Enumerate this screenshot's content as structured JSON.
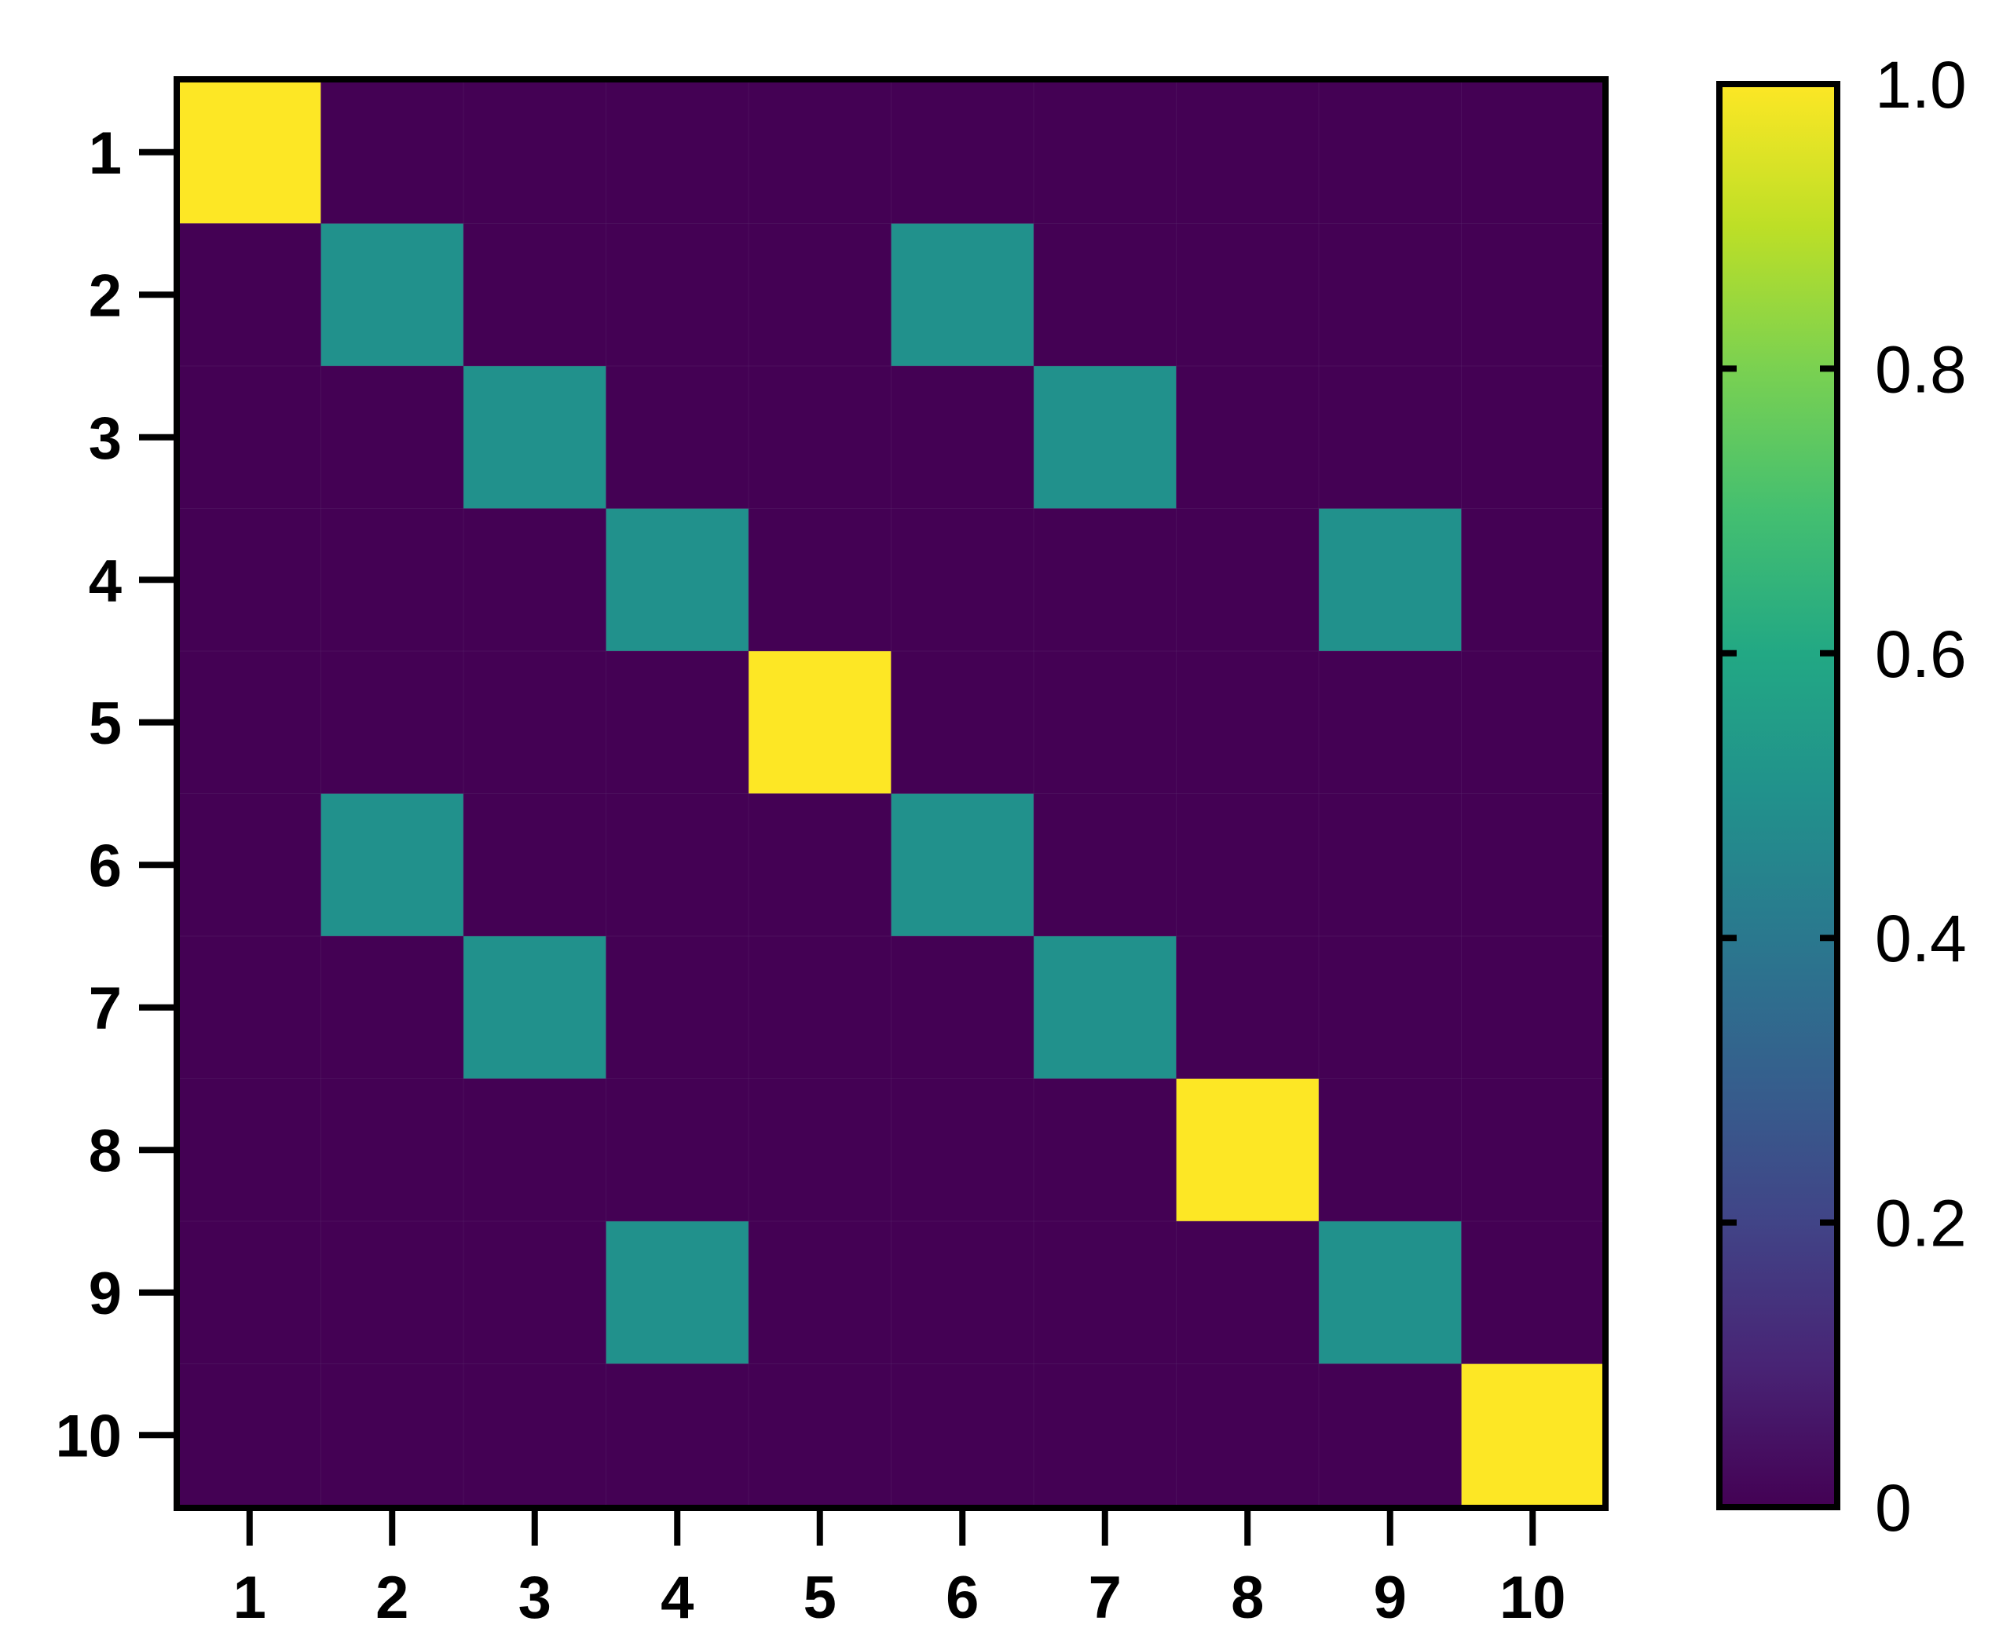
{
  "chart_data": {
    "type": "heatmap",
    "x_labels": [
      "1",
      "2",
      "3",
      "4",
      "5",
      "6",
      "7",
      "8",
      "9",
      "10"
    ],
    "y_labels": [
      "1",
      "2",
      "3",
      "4",
      "5",
      "6",
      "7",
      "8",
      "9",
      "10"
    ],
    "values": [
      [
        1.0,
        0,
        0,
        0,
        0,
        0,
        0,
        0,
        0,
        0
      ],
      [
        0,
        0.5,
        0,
        0,
        0,
        0.5,
        0,
        0,
        0,
        0
      ],
      [
        0,
        0,
        0.5,
        0,
        0,
        0,
        0.5,
        0,
        0,
        0
      ],
      [
        0,
        0,
        0,
        0.5,
        0,
        0,
        0,
        0,
        0.5,
        0
      ],
      [
        0,
        0,
        0,
        0,
        1.0,
        0,
        0,
        0,
        0,
        0
      ],
      [
        0,
        0.5,
        0,
        0,
        0,
        0.5,
        0,
        0,
        0,
        0
      ],
      [
        0,
        0,
        0.5,
        0,
        0,
        0,
        0.5,
        0,
        0,
        0
      ],
      [
        0,
        0,
        0,
        0,
        0,
        0,
        0,
        1.0,
        0,
        0
      ],
      [
        0,
        0,
        0,
        0.5,
        0,
        0,
        0,
        0,
        0.5,
        0
      ],
      [
        0,
        0,
        0,
        0,
        0,
        0,
        0,
        0,
        0,
        1.0
      ]
    ],
    "colorscale": "viridis",
    "zlim": [
      0,
      1
    ],
    "colorbar_ticks": [
      "0",
      "0.2",
      "0.4",
      "0.6",
      "0.8",
      "1.0"
    ],
    "title": "",
    "xlabel": "",
    "ylabel": "",
    "grid": false
  }
}
